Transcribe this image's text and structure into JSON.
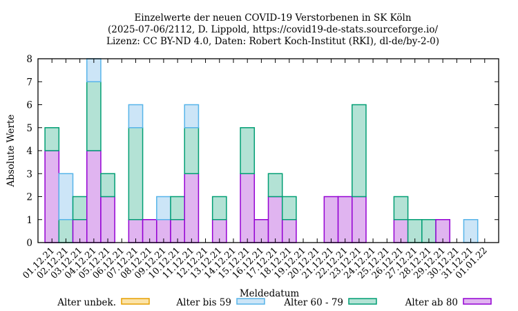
{
  "chart_data": {
    "type": "bar",
    "stacked": true,
    "title_lines": [
      "Einzelwerte der neuen COVID-19 Verstorbenen in SK Köln",
      "(2025-07-06/2112, D. Lippold, https://covid19-de-stats.sourceforge.io/",
      "Lizenz: CC BY-ND 4.0, Daten: Robert Koch-Institut (RKI), dl-de/by-2-0)"
    ],
    "xlabel": "Meldedatum",
    "ylabel": "Absolute Werte",
    "ylim": [
      0,
      8
    ],
    "yticks": [
      "0",
      "1",
      "2",
      "3",
      "4",
      "5",
      "6",
      "7",
      "8"
    ],
    "legend_placement": "bottom",
    "categories": [
      "01.12.21",
      "02.12.21",
      "03.12.21",
      "04.12.21",
      "05.12.21",
      "06.12.21",
      "07.12.21",
      "08.12.21",
      "09.12.21",
      "10.12.21",
      "11.12.21",
      "12.12.21",
      "13.12.21",
      "14.12.21",
      "15.12.21",
      "16.12.21",
      "17.12.21",
      "18.12.21",
      "19.12.21",
      "20.12.21",
      "21.12.21",
      "22.12.21",
      "23.12.21",
      "24.12.21",
      "25.12.21",
      "26.12.21",
      "27.12.21",
      "28.12.21",
      "29.12.21",
      "30.12.21",
      "31.12.21",
      "01.01.22"
    ],
    "series": [
      {
        "name": "Alter ab 80",
        "fill": "#e0b4f0",
        "stroke": "#9400d3",
        "values": [
          4,
          0,
          1,
          4,
          2,
          0,
          1,
          1,
          1,
          1,
          3,
          0,
          1,
          0,
          3,
          1,
          2,
          1,
          0,
          0,
          2,
          2,
          2,
          0,
          0,
          1,
          0,
          0,
          1,
          0,
          0,
          0
        ]
      },
      {
        "name": "Alter 60 - 79",
        "fill": "#b3e2d5",
        "stroke": "#009e73",
        "values": [
          1,
          1,
          1,
          3,
          1,
          0,
          4,
          0,
          0,
          1,
          2,
          0,
          1,
          0,
          2,
          0,
          1,
          1,
          0,
          0,
          0,
          0,
          4,
          0,
          0,
          1,
          1,
          1,
          0,
          0,
          0,
          0
        ]
      },
      {
        "name": "Alter bis 59",
        "fill": "#cce5f7",
        "stroke": "#56b4e9",
        "values": [
          0,
          2,
          0,
          1,
          0,
          0,
          1,
          0,
          1,
          0,
          1,
          0,
          0,
          0,
          0,
          0,
          0,
          0,
          0,
          0,
          0,
          0,
          0,
          0,
          0,
          0,
          0,
          0,
          0,
          0,
          1,
          0
        ]
      },
      {
        "name": "Alter unbek.",
        "fill": "#fbe3a8",
        "stroke": "#e69f00",
        "values": [
          0,
          0,
          0,
          0,
          0,
          0,
          0,
          0,
          0,
          0,
          0,
          0,
          0,
          0,
          0,
          0,
          0,
          0,
          0,
          0,
          0,
          0,
          0,
          0,
          0,
          0,
          0,
          0,
          0,
          0,
          0,
          0
        ]
      }
    ],
    "legend_order": [
      "Alter unbek.",
      "Alter bis 59",
      "Alter 60 - 79",
      "Alter ab 80"
    ]
  }
}
